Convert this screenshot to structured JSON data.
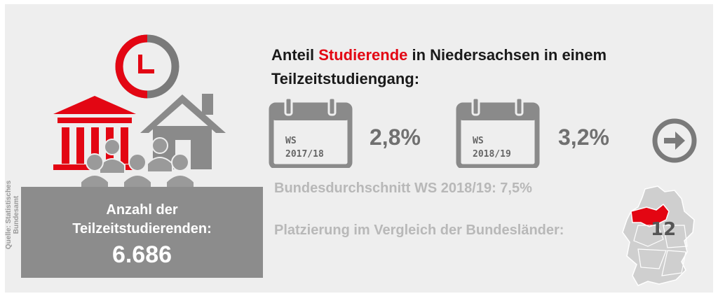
{
  "source": "Quelle: Statistisches Bundesamt",
  "icons": {
    "clock": "clock-icon",
    "university": "university-building-icon",
    "house": "house-icon",
    "people": "people-group-icon"
  },
  "stats": {
    "label_line1": "Anzahl der",
    "label_line2": "Teilzeitstudierenden:",
    "value": "6.686"
  },
  "headline": {
    "part1": "Anteil ",
    "highlight": "Studierende",
    "part2": " in Niedersachsen in einem",
    "line2": "Teilzeitstudiengang:"
  },
  "semesters": [
    {
      "label_line1": "WS",
      "label_line2": "2017/18",
      "percent": "2,8%"
    },
    {
      "label_line1": "WS",
      "label_line2": "2018/19",
      "percent": "3,2%"
    }
  ],
  "average": "Bundesdurchschnitt WS 2018/19: 7,5%",
  "placement": {
    "label": "Platzierung im Vergleich der Bundesländer:",
    "rank": "12"
  },
  "colors": {
    "accent": "#e30613",
    "dark_gray": "#707070",
    "light_gray": "#b8b8b8",
    "panel": "#eeeeee"
  }
}
